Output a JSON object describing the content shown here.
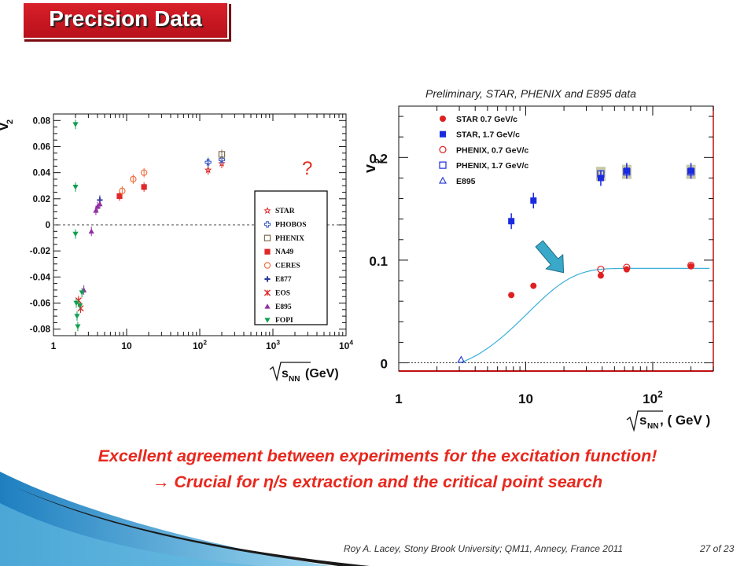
{
  "slide": {
    "title": "Precision Data",
    "subtitle": "Preliminary, STAR, PHENIX and E895 data",
    "message_line1": "Excellent agreement between experiments for the excitation function!",
    "message_line2": "→ Crucial for η/s extraction and the critical point search",
    "footer_credit": "Roy A. Lacey, Stony Brook University; QM11, Annecy, France 2011",
    "footer_page": "27 of 23",
    "question_mark": "?"
  },
  "colors": {
    "title_red": "#d01820",
    "message_red": "#e8281e",
    "arrow_teal": "#3aa8c8",
    "deco_blue": "#1e7fc0",
    "fit_line": "#3ab0d8"
  },
  "chart_data": [
    {
      "type": "scatter",
      "xscale": "log",
      "xlim": [
        1,
        10000
      ],
      "ylim": [
        -0.085,
        0.085
      ],
      "ylabel": "v2",
      "xlabel": "√s_NN (GeV)",
      "x_ticks": [
        "1",
        "10",
        "10^2",
        "10^3",
        "10^4"
      ],
      "y_ticks": [
        "0.08",
        "0.06",
        "0.04",
        "0.02",
        "0",
        "-0.02",
        "-0.04",
        "-0.06",
        "-0.08"
      ],
      "reference_line": 0,
      "legend_position": "right-lower",
      "series": [
        {
          "name": "STAR",
          "marker": "star-open",
          "color": "#e02828",
          "points": [
            [
              130,
              0.042
            ],
            [
              200,
              0.047
            ]
          ]
        },
        {
          "name": "PHOBOS",
          "marker": "cross-open",
          "color": "#3050c0",
          "points": [
            [
              130,
              0.048
            ],
            [
              200,
              0.05
            ]
          ]
        },
        {
          "name": "PHENIX",
          "marker": "square-open",
          "color": "#807050",
          "points": [
            [
              200,
              0.054
            ]
          ]
        },
        {
          "name": "NA49",
          "marker": "square-filled",
          "color": "#e02828",
          "points": [
            [
              8.0,
              0.022
            ],
            [
              17.3,
              0.029
            ]
          ]
        },
        {
          "name": "CERES",
          "marker": "circle-open",
          "color": "#f07040",
          "points": [
            [
              8.7,
              0.026
            ],
            [
              12.3,
              0.035
            ],
            [
              17.3,
              0.04
            ]
          ]
        },
        {
          "name": "E877",
          "marker": "plus",
          "color": "#2a3a9a",
          "points": [
            [
              4.3,
              0.019
            ]
          ]
        },
        {
          "name": "EOS",
          "marker": "x",
          "color": "#e02828",
          "points": [
            [
              2.2,
              -0.058
            ],
            [
              2.35,
              -0.064
            ]
          ]
        },
        {
          "name": "E895",
          "marker": "triangle-up",
          "color": "#9030a0",
          "points": [
            [
              2.6,
              -0.05
            ],
            [
              3.3,
              -0.005
            ],
            [
              3.8,
              0.011
            ],
            [
              4.0,
              0.014
            ],
            [
              4.3,
              0.016
            ]
          ]
        },
        {
          "name": "FOPI",
          "marker": "triangle-down",
          "color": "#10a050",
          "points": [
            [
              2.0,
              0.077
            ],
            [
              2.0,
              0.029
            ],
            [
              2.0,
              -0.007
            ],
            [
              2.05,
              -0.06
            ],
            [
              2.1,
              -0.07
            ],
            [
              2.15,
              -0.078
            ],
            [
              2.3,
              -0.062
            ],
            [
              2.45,
              -0.052
            ]
          ]
        }
      ]
    },
    {
      "type": "scatter",
      "xscale": "log",
      "xlim": [
        1,
        300
      ],
      "ylim": [
        -0.008,
        0.25
      ],
      "ylabel": "v2",
      "xlabel": "√s_NN, ( GeV )",
      "x_ticks": [
        "1",
        "10",
        "10^2"
      ],
      "y_ticks": [
        "0",
        "0.1",
        "0.2"
      ],
      "reference_line": 0,
      "legend_position": "top-left",
      "series": [
        {
          "name": "STAR 0.7 GeV/c",
          "marker": "circle-filled",
          "color": "#e02020",
          "points": [
            [
              7.7,
              0.066
            ],
            [
              11.5,
              0.075
            ],
            [
              39,
              0.085
            ],
            [
              62.4,
              0.091
            ],
            [
              200,
              0.094
            ]
          ]
        },
        {
          "name": "STAR, 1.7 GeV/c",
          "marker": "square-filled",
          "color": "#1a2ae0",
          "points": [
            [
              7.7,
              0.138
            ],
            [
              11.5,
              0.158
            ],
            [
              39,
              0.18
            ],
            [
              62.4,
              0.187
            ],
            [
              200,
              0.187
            ]
          ]
        },
        {
          "name": "PHENIX, 0.7 GeV/c",
          "marker": "circle-open",
          "color": "#e02020",
          "points": [
            [
              39,
              0.091
            ],
            [
              62.4,
              0.093
            ],
            [
              200,
              0.095
            ]
          ]
        },
        {
          "name": "PHENIX,  1.7 GeV/c",
          "marker": "square-open",
          "color": "#1a2ae0",
          "points": [
            [
              39,
              0.184
            ],
            [
              62.4,
              0.186
            ],
            [
              200,
              0.186
            ]
          ]
        },
        {
          "name": "E895",
          "marker": "triangle-open",
          "color": "#3040d0",
          "points": [
            [
              3.1,
              0.003
            ]
          ]
        }
      ],
      "fit_curve": {
        "plateau": 0.092,
        "start_x": 3.0
      }
    }
  ]
}
